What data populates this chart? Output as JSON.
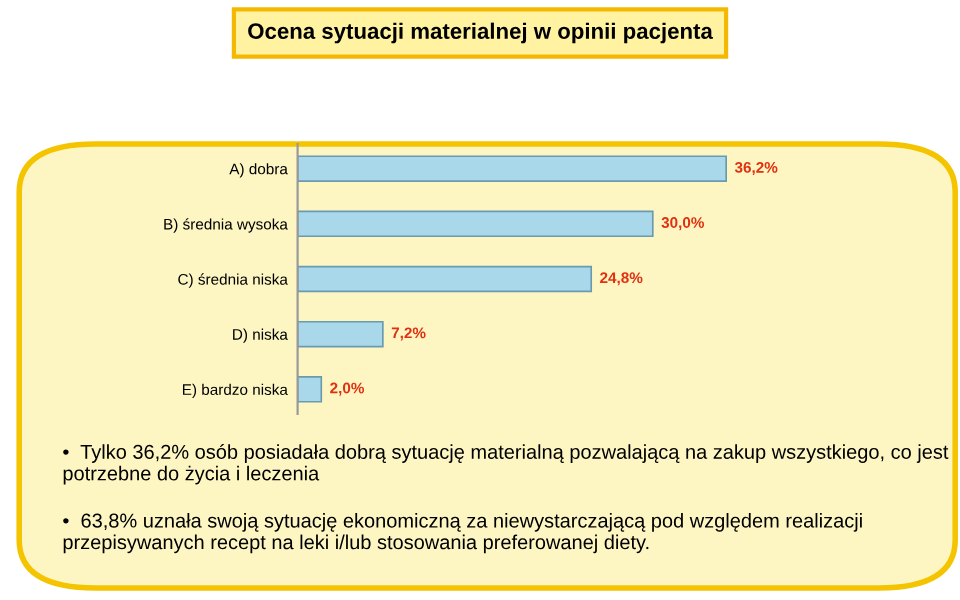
{
  "chart_data": {
    "type": "bar",
    "orientation": "horizontal",
    "title": "Ocena sytuacji materialnej w opinii pacjenta",
    "categories": [
      "A) dobra",
      "B) średnia wysoka",
      "C) średnia niska",
      "D) niska",
      "E) bardzo niska"
    ],
    "values": [
      36.2,
      30.0,
      24.8,
      7.2,
      2.0
    ],
    "value_labels": [
      "36,2%",
      "30,0%",
      "24,8%",
      "7,2%",
      "2,0%"
    ],
    "color": "#a8d8ea",
    "annotations": [
      "•  Tylko 36,2% osób posiadała dobrą sytuację materialną pozwalającą na zakup wszystkiego, co jest potrzebne do życia i leczenia",
      "•  63,8% uznała swoją sytuację ekonomiczną za niewystarczającą pod względem realizacji przepisywanych recept na leki i/lub stosowania preferowanej diety."
    ]
  }
}
